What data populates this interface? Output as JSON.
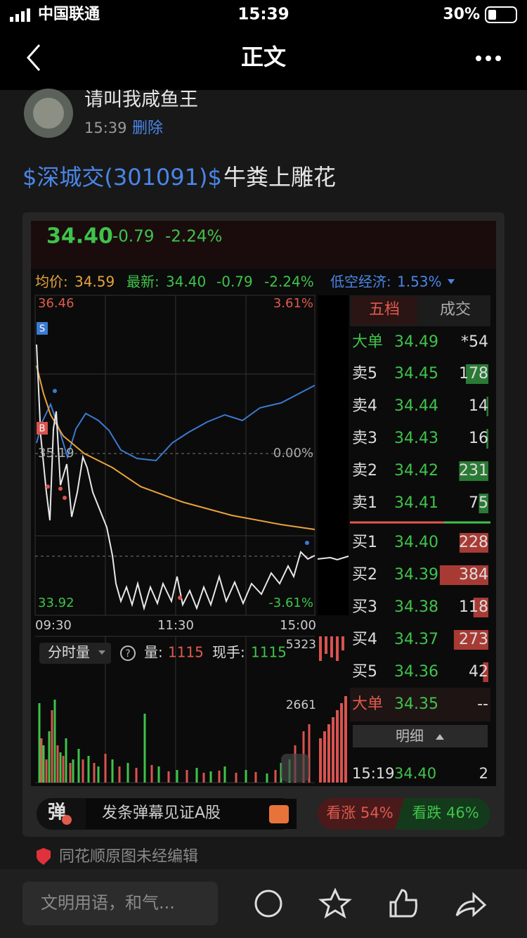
{
  "status_bar": {
    "carrier": "中国联通",
    "time": "15:39",
    "battery": "30%"
  },
  "nav": {
    "title": "正文"
  },
  "post": {
    "author": "请叫我咸鱼王",
    "time": "15:39",
    "delete": "删除",
    "stock_tag": "$深城交(301091)$",
    "text": "牛粪上雕花"
  },
  "quote": {
    "price": "34.40",
    "change": "-0.79",
    "percent": "-2.24%"
  },
  "info_bar": {
    "avg_label": "均价:",
    "avg": "34.59",
    "latest_label": "最新:",
    "latest": "34.40",
    "change": "-0.79",
    "percent": "-2.24%",
    "sector_label": "低空经济:",
    "sector_pct": "1.53%"
  },
  "chart": {
    "high": "36.46",
    "high_pct": "3.61%",
    "mid": "35.19",
    "mid_pct": "0.00%",
    "low": "33.92",
    "low_pct": "-3.61%",
    "times": [
      "09:30",
      "11:30",
      "15:00"
    ],
    "sell_marker": "S",
    "buy_marker": "B"
  },
  "volume": {
    "mode": "分时量",
    "help": "?",
    "vol_label": "量:",
    "vol": "1115",
    "hand_label": "现手:",
    "hand": "1115",
    "ticks": [
      "5323",
      "2661"
    ]
  },
  "order_book": {
    "tabs": [
      "五档",
      "成交"
    ],
    "big_sell": {
      "label": "大单",
      "price": "34.49",
      "qty": "*54"
    },
    "asks": [
      {
        "label": "卖5",
        "price": "34.45",
        "qty": 178
      },
      {
        "label": "卖4",
        "price": "34.44",
        "qty": 14
      },
      {
        "label": "卖3",
        "price": "34.43",
        "qty": 16
      },
      {
        "label": "卖2",
        "price": "34.42",
        "qty": 231
      },
      {
        "label": "卖1",
        "price": "34.41",
        "qty": 75
      }
    ],
    "bids": [
      {
        "label": "买1",
        "price": "34.40",
        "qty": 228
      },
      {
        "label": "买2",
        "price": "34.39",
        "qty": 384
      },
      {
        "label": "买3",
        "price": "34.38",
        "qty": 118
      },
      {
        "label": "买4",
        "price": "34.37",
        "qty": 273
      },
      {
        "label": "买5",
        "price": "34.36",
        "qty": 42
      }
    ],
    "big_buy": {
      "label": "大单",
      "price": "34.35",
      "qty": "--"
    },
    "detail": "明细",
    "trades": [
      {
        "time": "15:19",
        "price": "34.40",
        "qty": 2
      }
    ]
  },
  "danmu": {
    "icon": "弹",
    "text": "发条弹幕见证A股",
    "up": "看涨 54%",
    "down": "看跌 46%"
  },
  "footer_note": "同花顺原图未经编辑",
  "comment_bar": {
    "placeholder": "文明用语，和气..."
  }
}
